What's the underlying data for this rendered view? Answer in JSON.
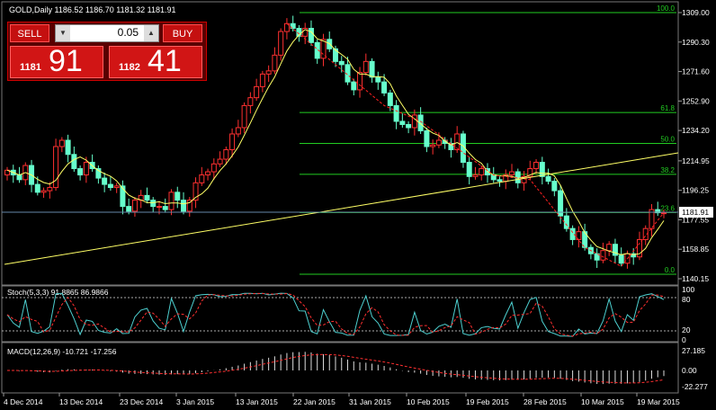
{
  "symbol_header": "GOLD,Daily  1186.52 1186.70 1181.32 1181.91",
  "trade_panel": {
    "sell_label": "SELL",
    "buy_label": "BUY",
    "lot_value": "0.05",
    "sell_prefix": "1181",
    "sell_suffix": "91",
    "buy_prefix": "1182",
    "buy_suffix": "41"
  },
  "price_axis": [
    "1309.00",
    "1290.30",
    "1271.60",
    "1252.90",
    "1234.20",
    "1214.95",
    "1196.25",
    "1177.55",
    "1158.85",
    "1140.15"
  ],
  "current_price": "1181.91",
  "fibonacci_levels": [
    "100.0",
    "61.8",
    "50.0",
    "38.2",
    "23.6",
    "0.0"
  ],
  "stoch_label": "Stoch(5,3,3) 91.8865 86.9866",
  "stoch_axis": [
    "100",
    "80",
    "20",
    "0"
  ],
  "macd_label": "MACD(12,26,9) -10.721 -17.256",
  "macd_axis": [
    "27.185",
    "0.00",
    "-22.277"
  ],
  "date_axis": [
    "4 Dec 2014",
    "13 Dec 2014",
    "23 Dec 2014",
    "3 Jan 2015",
    "13 Jan 2015",
    "22 Jan 2015",
    "31 Jan 2015",
    "10 Feb 2015",
    "19 Feb 2015",
    "28 Feb 2015",
    "10 Mar 2015",
    "19 Mar 2015"
  ],
  "chart_data": {
    "type": "candlestick",
    "title": "GOLD,Daily",
    "ylim": [
      1140.15,
      1309.0
    ],
    "closes": [
      1209,
      1206,
      1203,
      1212,
      1200,
      1195,
      1196,
      1198,
      1224,
      1228,
      1219,
      1210,
      1206,
      1214,
      1210,
      1204,
      1200,
      1198,
      1199,
      1186,
      1183,
      1190,
      1193,
      1190,
      1186,
      1186,
      1184,
      1195,
      1190,
      1183,
      1190,
      1201,
      1206,
      1208,
      1213,
      1216,
      1222,
      1232,
      1236,
      1250,
      1255,
      1262,
      1270,
      1272,
      1282,
      1297,
      1302,
      1299,
      1294,
      1299,
      1290,
      1280,
      1292,
      1286,
      1278,
      1276,
      1265,
      1260,
      1271,
      1278,
      1268,
      1265,
      1258,
      1250,
      1240,
      1238,
      1236,
      1244,
      1234,
      1224,
      1225,
      1228,
      1226,
      1222,
      1232,
      1214,
      1205,
      1206,
      1210,
      1206,
      1203,
      1202,
      1206,
      1208,
      1201,
      1205,
      1210,
      1214,
      1205,
      1202,
      1196,
      1180,
      1172,
      1165,
      1170,
      1160,
      1156,
      1152,
      1158,
      1162,
      1155,
      1150,
      1156,
      1154,
      1165,
      1172,
      1184,
      1182,
      1182
    ],
    "fib_high": 1309.0,
    "fib_low": 1143.0
  }
}
